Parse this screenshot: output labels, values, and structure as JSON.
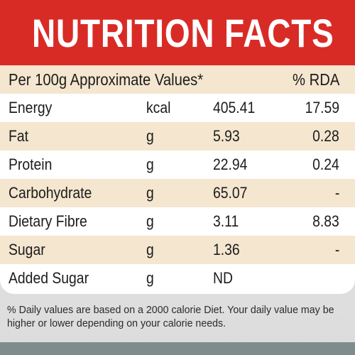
{
  "header": {
    "title": "NUTRITION FACTS"
  },
  "table": {
    "heading_label": "Per 100g Approximate Values*",
    "heading_rda": "% RDA",
    "rows": [
      {
        "name": "Energy",
        "unit": "kcal",
        "value": "405.41",
        "rda": "17.59"
      },
      {
        "name": "Fat",
        "unit": "g",
        "value": "5.93",
        "rda": "0.28"
      },
      {
        "name": "Protein",
        "unit": "g",
        "value": "22.94",
        "rda": "0.24"
      },
      {
        "name": "Carbohydrate",
        "unit": "g",
        "value": "65.07",
        "rda": "-"
      },
      {
        "name": "Dietary Fibre",
        "unit": "g",
        "value": "3.11",
        "rda": "8.83"
      },
      {
        "name": "Sugar",
        "unit": "g",
        "value": "1.36",
        "rda": "-"
      },
      {
        "name": "Added Sugar",
        "unit": "g",
        "value": "ND",
        "rda": ""
      }
    ]
  },
  "footer": {
    "note": "% Daily values are based on a 2000 calorie Diet. Your daily value may be higher or lower depending on your calorie needs."
  },
  "colors": {
    "header_red": "#d92b26",
    "row_shade": "#f4e6cf"
  }
}
